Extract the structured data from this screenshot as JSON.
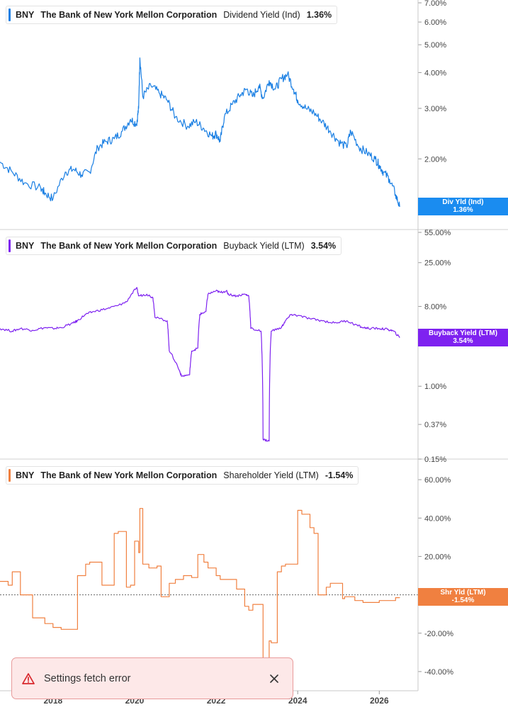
{
  "panels": [
    {
      "ticker": "BNY",
      "company": "The Bank of New York Mellon Corporation",
      "metric": "Dividend Yield (Ind)",
      "value": "1.36%",
      "tag_name": "Div Yld (Ind)",
      "tag_value": "1.36%",
      "color": "#1a7fe3",
      "tag_color": "#1a8cf0"
    },
    {
      "ticker": "BNY",
      "company": "The Bank of New York Mellon Corporation",
      "metric": "Buyback Yield (LTM)",
      "value": "3.54%",
      "tag_name": "Buyback Yield (LTM)",
      "tag_value": "3.54%",
      "color": "#7e22f0",
      "tag_color": "#7e22f0"
    },
    {
      "ticker": "BNY",
      "company": "The Bank of New York Mellon Corporation",
      "metric": "Shareholder Yield (LTM)",
      "value": "-1.54%",
      "tag_name": "Shr Yld (LTM)",
      "tag_value": "-1.54%",
      "color": "#f08040",
      "tag_color": "#f08040"
    }
  ],
  "toast": {
    "message": "Settings fetch error"
  },
  "chart_data": [
    {
      "type": "line",
      "name": "Dividend Yield (Ind)",
      "scale": "log",
      "ylim": [
        1.3,
        7.0
      ],
      "yticks": [
        "7.00%",
        "6.00%",
        "5.00%",
        "4.00%",
        "3.00%",
        "2.00%"
      ],
      "ytick_values": [
        7,
        6,
        5,
        4,
        3,
        2
      ],
      "x": [
        2016.7,
        2017.0,
        2017.3,
        2017.7,
        2017.8,
        2018.0,
        2018.3,
        2018.5,
        2018.7,
        2018.9,
        2019.1,
        2019.3,
        2019.5,
        2019.7,
        2019.9,
        2020.05,
        2020.1,
        2020.13,
        2020.2,
        2020.4,
        2020.6,
        2020.8,
        2021.0,
        2021.3,
        2021.5,
        2021.7,
        2021.9,
        2022.0,
        2022.1,
        2022.2,
        2022.4,
        2022.6,
        2022.75,
        2022.9,
        2023.05,
        2023.15,
        2023.3,
        2023.45,
        2023.6,
        2023.75,
        2023.9,
        2024.0,
        2024.2,
        2024.4,
        2024.6,
        2024.8,
        2025.0,
        2025.2,
        2025.3,
        2025.5,
        2025.7,
        2025.9,
        2026.0,
        2026.1,
        2026.25,
        2026.4,
        2026.5
      ],
      "y": [
        1.95,
        1.8,
        1.65,
        1.58,
        1.52,
        1.45,
        1.8,
        1.84,
        1.76,
        1.8,
        2.2,
        2.3,
        2.35,
        2.5,
        2.75,
        2.65,
        3.0,
        4.5,
        3.3,
        3.6,
        3.4,
        3.2,
        2.8,
        2.6,
        2.7,
        2.55,
        2.4,
        2.45,
        2.3,
        2.8,
        3.1,
        3.35,
        3.5,
        3.3,
        3.6,
        3.25,
        3.75,
        3.5,
        3.8,
        3.95,
        3.5,
        3.2,
        3.0,
        2.9,
        2.7,
        2.5,
        2.3,
        2.2,
        2.5,
        2.2,
        2.1,
        2.0,
        1.9,
        1.8,
        1.7,
        1.5,
        1.36
      ]
    },
    {
      "type": "line",
      "name": "Buyback Yield (LTM)",
      "scale": "log",
      "ylim": [
        0.15,
        55
      ],
      "yticks": [
        "55.00%",
        "25.00%",
        "8.00%",
        "1.00%",
        "0.37%",
        "0.15%"
      ],
      "ytick_values": [
        55,
        25,
        8,
        1,
        0.37,
        0.15
      ],
      "x": [
        2016.7,
        2017.0,
        2017.2,
        2017.5,
        2017.8,
        2018.0,
        2018.2,
        2018.5,
        2018.6,
        2018.8,
        2019.0,
        2019.3,
        2019.6,
        2019.8,
        2020.05,
        2020.1,
        2020.3,
        2020.45,
        2020.5,
        2020.8,
        2020.85,
        2021.1,
        2021.15,
        2021.35,
        2021.4,
        2021.55,
        2021.6,
        2021.75,
        2021.8,
        2022.0,
        2022.1,
        2022.25,
        2022.3,
        2022.5,
        2022.7,
        2022.8,
        2022.85,
        2023.1,
        2023.15,
        2023.3,
        2023.35,
        2023.6,
        2023.7,
        2023.85,
        2024.0,
        2024.3,
        2024.6,
        2024.9,
        2025.2,
        2025.4,
        2025.6,
        2025.8,
        2026.0,
        2026.2,
        2026.35,
        2026.5
      ],
      "y": [
        4.5,
        4.2,
        4.5,
        4.3,
        4.6,
        4.5,
        4.6,
        5.2,
        5.5,
        6.5,
        7.0,
        7.5,
        8.2,
        9.0,
        13.0,
        10.5,
        11.0,
        10.0,
        6.0,
        5.5,
        2.5,
        1.5,
        1.3,
        1.35,
        2.5,
        2.7,
        6.5,
        7.0,
        11.0,
        12.0,
        11.5,
        12.0,
        11.0,
        10.5,
        11.0,
        10.5,
        4.5,
        4.2,
        0.25,
        0.24,
        4.2,
        4.6,
        5.5,
        6.5,
        6.3,
        5.8,
        5.5,
        5.2,
        5.5,
        5.0,
        4.6,
        4.5,
        4.5,
        4.4,
        4.2,
        3.54
      ]
    },
    {
      "type": "line",
      "name": "Shareholder Yield (LTM)",
      "scale": "linear",
      "ylim": [
        -50,
        70
      ],
      "yticks": [
        "60.00%",
        "40.00%",
        "20.00%",
        "0.00%",
        "-20.00%",
        "-40.00%"
      ],
      "ytick_values": [
        60,
        40,
        20,
        0,
        -20,
        -40
      ],
      "baseline": 0,
      "x": [
        2016.7,
        2016.9,
        2017.0,
        2017.15,
        2017.2,
        2017.45,
        2017.5,
        2017.75,
        2017.8,
        2018.0,
        2018.2,
        2018.4,
        2018.6,
        2018.8,
        2018.9,
        2019.1,
        2019.2,
        2019.35,
        2019.5,
        2019.6,
        2019.8,
        2019.9,
        2020.0,
        2020.1,
        2020.13,
        2020.2,
        2020.35,
        2020.55,
        2020.65,
        2020.85,
        2021.0,
        2021.2,
        2021.4,
        2021.55,
        2021.7,
        2021.8,
        2022.0,
        2022.1,
        2022.3,
        2022.5,
        2022.7,
        2022.8,
        2022.9,
        2023.15,
        2023.2,
        2023.3,
        2023.35,
        2023.5,
        2023.6,
        2023.7,
        2024.0,
        2024.1,
        2024.3,
        2024.4,
        2024.5,
        2024.7,
        2024.8,
        2025.1,
        2025.15,
        2025.3,
        2025.4,
        2025.6,
        2025.8,
        2026.0,
        2026.2,
        2026.4,
        2026.5
      ],
      "y": [
        7,
        5,
        12,
        12,
        0,
        0,
        -12,
        -12,
        -15,
        -17,
        -18,
        -18,
        10,
        16,
        17,
        17,
        5,
        5,
        32,
        33,
        4,
        5,
        28,
        22,
        45,
        16,
        14,
        15,
        -1,
        6,
        8,
        10,
        9,
        21,
        17,
        14,
        10,
        8,
        8,
        3,
        -6,
        -8,
        -5,
        -45,
        -48,
        -24,
        -25,
        12,
        15,
        16,
        44,
        42,
        35,
        32,
        0,
        4,
        6,
        -2,
        -1,
        -1,
        -3,
        -4,
        -4,
        -3,
        -3,
        -1.5,
        -1.54
      ]
    }
  ],
  "x_axis": {
    "ticks": [
      "2018",
      "2020",
      "2022",
      "2024",
      "2026"
    ],
    "tick_values": [
      2018,
      2020,
      2022,
      2024,
      2026
    ],
    "xlim": [
      2016.7,
      2026.95
    ]
  }
}
